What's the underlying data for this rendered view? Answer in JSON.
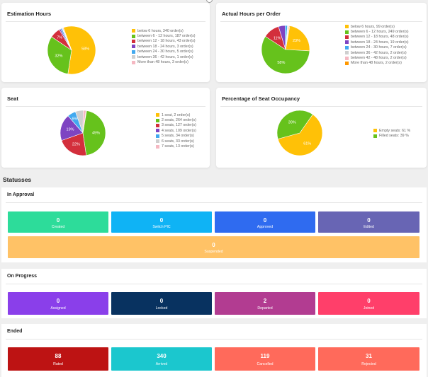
{
  "cards": [
    {
      "title": "Estimation Hours",
      "slices": [
        {
          "label": "below 6 hours, 340 order(s)",
          "color": "#ffc107",
          "value": 58,
          "text": "58%"
        },
        {
          "label": "between 6 - 12 hours, 187 order(s)",
          "color": "#66c21c",
          "value": 32,
          "text": "32%"
        },
        {
          "label": "between 12 - 18 hours, 43 order(s)",
          "color": "#d32f3c",
          "value": 7,
          "text": "7%"
        },
        {
          "label": "between 18 - 24 hours, 3 order(s)",
          "color": "#7e44c2",
          "value": 1,
          "text": ""
        },
        {
          "label": "between 24 - 30 hours, 5 order(s)",
          "color": "#42a9ef",
          "value": 1,
          "text": ""
        },
        {
          "label": "between 36 - 42 hours, 1 order(s)",
          "color": "#cfcfcf",
          "value": 0.4,
          "text": ""
        },
        {
          "label": "More than 48 hours, 3 order(s)",
          "color": "#f5b8c2",
          "value": 0.6,
          "text": ""
        }
      ]
    },
    {
      "title": "Actual Hours per Order",
      "slices": [
        {
          "label": "below 6 hours, 99 order(s)",
          "color": "#ffc107",
          "value": 23,
          "text": "23%"
        },
        {
          "label": "between 6 - 12 hours, 249 order(s)",
          "color": "#66c21c",
          "value": 58,
          "text": "58%"
        },
        {
          "label": "between 12 - 18 hours, 48 order(s)",
          "color": "#d32f3c",
          "value": 11,
          "text": "11%"
        },
        {
          "label": "between 18 - 24 hours, 19 order(s)",
          "color": "#7e44c2",
          "value": 4.4,
          "text": ""
        },
        {
          "label": "between 24 - 30 hours, 7 order(s)",
          "color": "#42a9ef",
          "value": 1.6,
          "text": ""
        },
        {
          "label": "between 36 - 42 hours, 2 order(s)",
          "color": "#cfcfcf",
          "value": 0.5,
          "text": ""
        },
        {
          "label": "between 42 - 48 hours, 2 order(s)",
          "color": "#f5b8c2",
          "value": 0.5,
          "text": ""
        },
        {
          "label": "More than 48 hours, 2 order(s)",
          "color": "#ff9800",
          "value": 0.5,
          "text": ""
        }
      ]
    },
    {
      "title": "Seat",
      "slices": [
        {
          "label": "1 seat, 2 order(s)",
          "color": "#ffc107",
          "value": 0.4,
          "text": ""
        },
        {
          "label": "2 seats, 264 order(s)",
          "color": "#66c21c",
          "value": 45,
          "text": "45%"
        },
        {
          "label": "3 seats, 127 order(s)",
          "color": "#d32f3c",
          "value": 22,
          "text": "22%"
        },
        {
          "label": "4 seats, 109 order(s)",
          "color": "#7e44c2",
          "value": 19,
          "text": "19%"
        },
        {
          "label": "5 seats, 34 order(s)",
          "color": "#42a9ef",
          "value": 6,
          "text": "6%"
        },
        {
          "label": "6 seats, 33 order(s)",
          "color": "#cfcfcf",
          "value": 5.6,
          "text": ""
        },
        {
          "label": "7 seats, 13 order(s)",
          "color": "#f5b8c2",
          "value": 2,
          "text": ""
        }
      ]
    },
    {
      "title": "Percentage of Seat Occupancy",
      "slices": [
        {
          "label": "Empty seats: 61 %",
          "color": "#ffc107",
          "value": 61,
          "text": "61%"
        },
        {
          "label": "Filled seats: 39 %",
          "color": "#66c21c",
          "value": 39,
          "text": "39%"
        }
      ]
    }
  ],
  "statuses_title": "Statusses",
  "sections": [
    {
      "title": "In Approval",
      "tiles": [
        {
          "value": "0",
          "label": "Created",
          "color": "#2ddc9a"
        },
        {
          "value": "0",
          "label": "Switch PIC",
          "color": "#0fb3f5"
        },
        {
          "value": "0",
          "label": "Approved",
          "color": "#2f6bf0"
        },
        {
          "value": "0",
          "label": "Edited",
          "color": "#6865b4"
        },
        {
          "value": "0",
          "label": "Suspended",
          "color": "#ffc266"
        }
      ]
    },
    {
      "title": "On Progress",
      "tiles": [
        {
          "value": "0",
          "label": "Assigned",
          "color": "#8a3fea"
        },
        {
          "value": "0",
          "label": "Locked",
          "color": "#083260"
        },
        {
          "value": "2",
          "label": "Departed",
          "color": "#b23c91"
        },
        {
          "value": "0",
          "label": "Joined",
          "color": "#ff3f6a"
        }
      ]
    },
    {
      "title": "Ended",
      "tiles": [
        {
          "value": "88",
          "label": "Rated",
          "color": "#bd1313"
        },
        {
          "value": "340",
          "label": "Arrived",
          "color": "#1bc7ce"
        },
        {
          "value": "119",
          "label": "Cancelled",
          "color": "#ff6a5b"
        },
        {
          "value": "31",
          "label": "Rejected",
          "color": "#ff6a5b"
        }
      ]
    }
  ]
}
